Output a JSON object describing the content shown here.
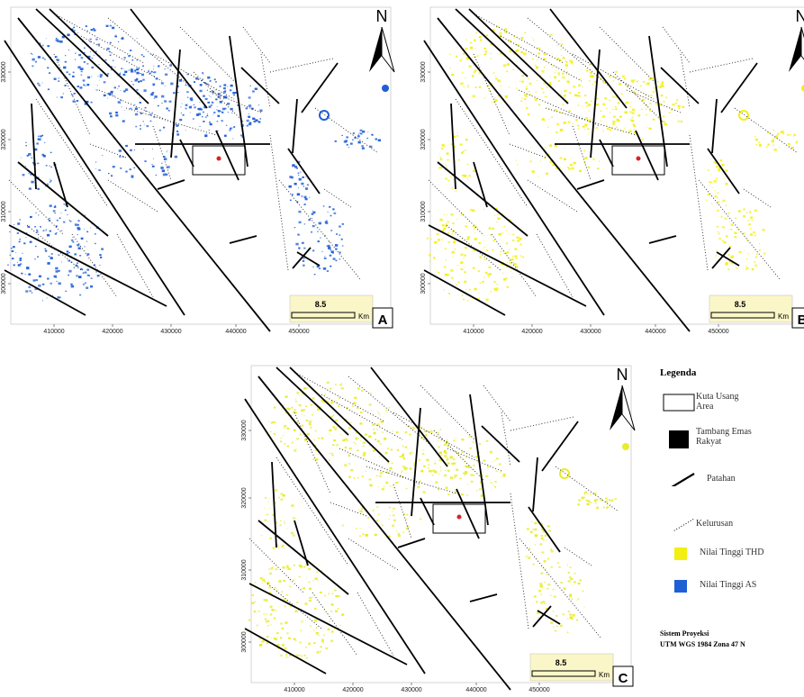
{
  "maps": [
    {
      "id": "A",
      "letter": "A",
      "north": "N",
      "scale_value": "8.5",
      "scale_unit": "Km",
      "highlight": "#1f5fd6",
      "x_ticks": [
        "410000",
        "420000",
        "430000",
        "440000",
        "450000"
      ],
      "y_ticks": [
        "330000",
        "320000",
        "310000",
        "300000"
      ]
    },
    {
      "id": "B",
      "letter": "B",
      "north": "N",
      "scale_value": "8.5",
      "scale_unit": "Km",
      "highlight": "#f3ef12",
      "x_ticks": [
        "410000",
        "420000",
        "430000",
        "440000",
        "450000"
      ],
      "y_ticks": [
        "330000",
        "320000",
        "310000",
        "300000"
      ]
    },
    {
      "id": "C",
      "letter": "C",
      "north": "N",
      "scale_value": "8.5",
      "scale_unit": "Km",
      "highlight": "#e9eb2c",
      "x_ticks": [
        "410000",
        "420000",
        "430000",
        "440000",
        "450000"
      ],
      "y_ticks": [
        "330000",
        "320000",
        "310000",
        "300000"
      ]
    }
  ],
  "legend": {
    "title": "Legenda",
    "items": [
      {
        "symbol": "box-outline",
        "line1": "Kuta Usang",
        "line2": "Area"
      },
      {
        "symbol": "box-black",
        "line1": "Tambang Emas",
        "line2": "Rakyat"
      },
      {
        "symbol": "solid-line",
        "line1": "Patahan",
        "line2": ""
      },
      {
        "symbol": "dotted-line",
        "line1": "Kelurusan",
        "line2": ""
      },
      {
        "symbol": "yellow-box",
        "line1": "Nilai Tinggi THD",
        "line2": "",
        "color": "#f3ef12"
      },
      {
        "symbol": "blue-box",
        "line1": "Nilai Tinggi AS",
        "line2": "",
        "color": "#1f5fd6"
      }
    ],
    "projection_title": "Sistem Proyeksi",
    "projection_value": "UTM WGS 1984  Zona 47 N"
  }
}
